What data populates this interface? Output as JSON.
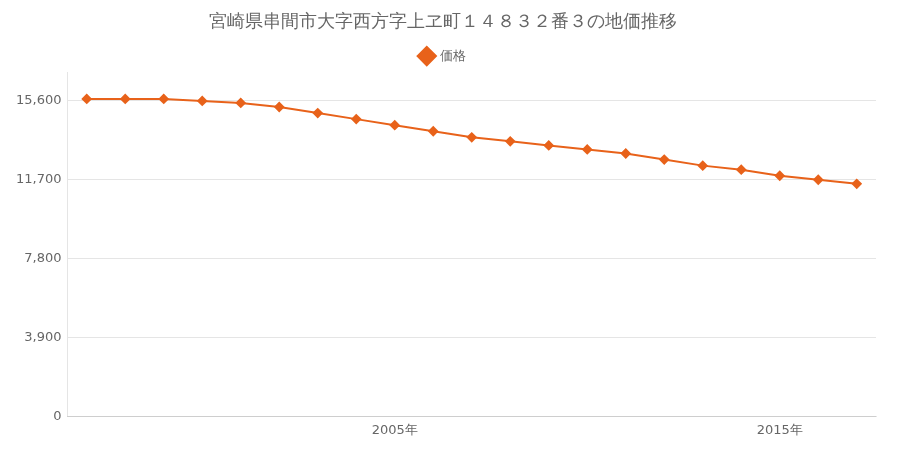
{
  "chart_data": {
    "type": "line",
    "title": "宮崎県串間市大字西方字上ヱ町１４８３２番３の地価推移",
    "x": [
      1997,
      1998,
      1999,
      2000,
      2001,
      2002,
      2003,
      2004,
      2005,
      2006,
      2007,
      2008,
      2009,
      2010,
      2011,
      2012,
      2013,
      2014,
      2015,
      2016,
      2017
    ],
    "series": [
      {
        "name": "価格",
        "color": "#E8621A",
        "marker": "diamond",
        "values": [
          15700,
          15700,
          15700,
          15600,
          15500,
          15300,
          15000,
          14700,
          14400,
          14100,
          13800,
          13600,
          13400,
          13200,
          13000,
          12700,
          12400,
          12200,
          11900,
          11700,
          11500
        ]
      }
    ],
    "xlim": [
      1996.5,
      2017.5
    ],
    "xticks": [
      {
        "value": 2005,
        "label": "2005年"
      },
      {
        "value": 2015,
        "label": "2015年"
      }
    ],
    "ylim": [
      0,
      17000
    ],
    "yticks": [
      0,
      {
        "value": 3900,
        "label": "3,900"
      },
      {
        "value": 7800,
        "label": "7,800"
      },
      {
        "value": 11700,
        "label": "11,700"
      },
      {
        "value": 15600,
        "label": "15,600"
      }
    ],
    "grid": "y",
    "legend": "top"
  }
}
